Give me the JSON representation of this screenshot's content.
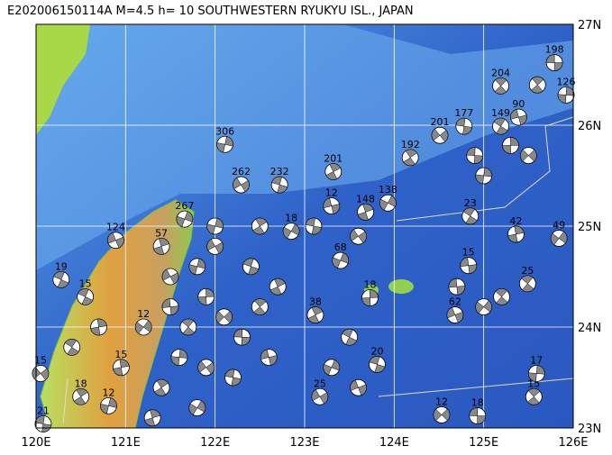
{
  "title": "E202006150114A M=4.5 h= 10 SOUTHWESTERN RYUKYU ISL., JAPAN",
  "lon_labels": [
    {
      "value": 120,
      "label": "120E"
    },
    {
      "value": 121,
      "label": "121E"
    },
    {
      "value": 122,
      "label": "122E"
    },
    {
      "value": 123,
      "label": "123E"
    },
    {
      "value": 124,
      "label": "124E"
    },
    {
      "value": 125,
      "label": "125E"
    },
    {
      "value": 126,
      "label": "126E"
    }
  ],
  "lat_labels": [
    {
      "value": 23,
      "label": "23N"
    },
    {
      "value": 24,
      "label": "24N"
    },
    {
      "value": 25,
      "label": "25N"
    },
    {
      "value": 26,
      "label": "26N"
    },
    {
      "value": 27,
      "label": "27N"
    }
  ],
  "events": [
    {
      "label": "198",
      "lon": 125.79,
      "lat": 26.62
    },
    {
      "label": "204",
      "lon": 125.19,
      "lat": 26.39
    },
    {
      "label": "126",
      "lon": 125.92,
      "lat": 26.3
    },
    {
      "label": "201",
      "lon": 124.51,
      "lat": 25.9
    },
    {
      "label": "177",
      "lon": 124.78,
      "lat": 25.99
    },
    {
      "label": "192",
      "lon": 124.18,
      "lat": 25.68
    },
    {
      "label": "306",
      "lon": 122.11,
      "lat": 25.81
    },
    {
      "label": "262",
      "lon": 122.29,
      "lat": 25.41
    },
    {
      "label": "232",
      "lon": 122.72,
      "lat": 25.41
    },
    {
      "label": "201",
      "lon": 123.32,
      "lat": 25.54
    },
    {
      "label": "267",
      "lon": 121.66,
      "lat": 25.07
    },
    {
      "label": "124",
      "lon": 120.89,
      "lat": 24.86
    },
    {
      "label": "19",
      "lon": 120.28,
      "lat": 24.47
    },
    {
      "label": "148",
      "lon": 123.68,
      "lat": 25.14
    },
    {
      "label": "138",
      "lon": 123.93,
      "lat": 25.23
    },
    {
      "label": "90",
      "lon": 125.39,
      "lat": 26.08
    },
    {
      "label": "149",
      "lon": 125.19,
      "lat": 25.99
    },
    {
      "label": "42",
      "lon": 125.36,
      "lat": 24.92
    },
    {
      "label": "49",
      "lon": 125.84,
      "lat": 24.88
    },
    {
      "label": "15",
      "lon": 124.83,
      "lat": 24.61
    },
    {
      "label": "25",
      "lon": 125.49,
      "lat": 24.43
    },
    {
      "label": "18",
      "lon": 123.73,
      "lat": 24.29
    },
    {
      "label": "12",
      "lon": 124.53,
      "lat": 23.13
    },
    {
      "label": "18",
      "lon": 124.93,
      "lat": 23.12
    },
    {
      "label": "15",
      "lon": 125.56,
      "lat": 23.31
    },
    {
      "label": "17",
      "lon": 125.59,
      "lat": 23.54
    },
    {
      "label": "15",
      "lon": 120.05,
      "lat": 23.54
    },
    {
      "label": "21",
      "lon": 120.08,
      "lat": 23.04
    },
    {
      "label": "18",
      "lon": 120.5,
      "lat": 23.31
    },
    {
      "label": "12",
      "lon": 120.81,
      "lat": 23.22
    },
    {
      "label": "25",
      "lon": 123.17,
      "lat": 23.31
    },
    {
      "label": "20",
      "lon": 123.81,
      "lat": 23.63
    },
    {
      "label": "38",
      "lon": 123.12,
      "lat": 24.12
    },
    {
      "label": "68",
      "lon": 123.4,
      "lat": 24.66
    },
    {
      "label": "62",
      "lon": 124.68,
      "lat": 24.12
    },
    {
      "label": "15",
      "lon": 120.55,
      "lat": 24.3
    },
    {
      "label": "57",
      "lon": 121.4,
      "lat": 24.8
    },
    {
      "label": "18",
      "lon": 122.85,
      "lat": 24.95
    },
    {
      "label": "12",
      "lon": 123.3,
      "lat": 25.2
    },
    {
      "label": "23",
      "lon": 124.85,
      "lat": 25.1
    },
    {
      "label": "15",
      "lon": 120.95,
      "lat": 23.6
    },
    {
      "label": "12",
      "lon": 121.2,
      "lat": 24.0
    },
    {
      "lon": 121.5,
      "lat": 24.2
    },
    {
      "lon": 121.7,
      "lat": 24.0
    },
    {
      "lon": 121.9,
      "lat": 24.3
    },
    {
      "lon": 122.1,
      "lat": 24.1
    },
    {
      "lon": 122.3,
      "lat": 23.9
    },
    {
      "lon": 122.5,
      "lat": 24.2
    },
    {
      "lon": 121.6,
      "lat": 23.7
    },
    {
      "lon": 121.9,
      "lat": 23.6
    },
    {
      "lon": 122.2,
      "lat": 23.5
    },
    {
      "lon": 121.4,
      "lat": 23.4
    },
    {
      "lon": 121.8,
      "lat": 24.6
    },
    {
      "lon": 122.0,
      "lat": 24.8
    },
    {
      "lon": 122.4,
      "lat": 24.6
    },
    {
      "lon": 122.7,
      "lat": 24.4
    },
    {
      "lon": 123.3,
      "lat": 23.6
    },
    {
      "lon": 123.6,
      "lat": 23.4
    },
    {
      "lon": 123.5,
      "lat": 23.9
    },
    {
      "lon": 121.3,
      "lat": 23.1
    },
    {
      "lon": 121.8,
      "lat": 23.2
    },
    {
      "lon": 122.6,
      "lat": 23.7
    },
    {
      "lon": 120.4,
      "lat": 23.8
    },
    {
      "lon": 120.7,
      "lat": 24.0
    },
    {
      "lon": 125.0,
      "lat": 24.2
    },
    {
      "lon": 124.7,
      "lat": 24.4
    },
    {
      "lon": 125.2,
      "lat": 24.3
    },
    {
      "lon": 125.3,
      "lat": 25.8
    },
    {
      "lon": 125.5,
      "lat": 25.7
    },
    {
      "lon": 124.9,
      "lat": 25.7
    },
    {
      "lon": 125.6,
      "lat": 26.4
    },
    {
      "lon": 125.0,
      "lat": 25.5
    },
    {
      "lon": 123.6,
      "lat": 24.9
    },
    {
      "lon": 123.1,
      "lat": 25.0
    },
    {
      "lon": 122.5,
      "lat": 25.0
    },
    {
      "lon": 122.0,
      "lat": 25.0
    },
    {
      "lon": 121.5,
      "lat": 24.5
    }
  ]
}
